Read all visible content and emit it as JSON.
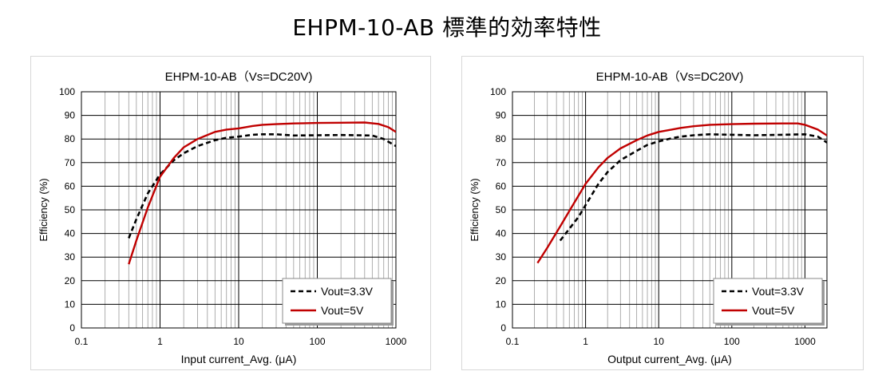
{
  "page": {
    "title": "EHPM-10-AB 標準的効率特性"
  },
  "chart_data": [
    {
      "type": "line",
      "title": "EHPM-10-AB（Vs=DC20V)",
      "xlabel": "Input current_Avg. (μA)",
      "ylabel": "Efficiency (%)",
      "x_scale": "log",
      "xlim": [
        0.1,
        1000
      ],
      "ylim": [
        0,
        100
      ],
      "x_ticks": [
        0.1,
        1,
        10,
        100,
        1000
      ],
      "x_tick_labels": [
        "0.1",
        "1",
        "10",
        "100",
        "1000"
      ],
      "y_ticks": [
        0,
        10,
        20,
        30,
        40,
        50,
        60,
        70,
        80,
        90,
        100
      ],
      "y_tick_labels": [
        "0",
        "10",
        "20",
        "30",
        "40",
        "50",
        "60",
        "70",
        "80",
        "90",
        "100"
      ],
      "grid": true,
      "legend_position": "bottom-right",
      "series": [
        {
          "name": "Vout=3.3V",
          "color": "#000000",
          "dash": "dashed",
          "x": [
            0.4,
            0.5,
            0.7,
            1,
            1.5,
            2,
            3,
            5,
            7,
            10,
            15,
            20,
            30,
            50,
            100,
            200,
            500,
            700,
            1000
          ],
          "y": [
            38,
            46,
            57,
            65,
            71,
            74,
            77,
            79.5,
            80.5,
            81,
            81.8,
            82,
            82,
            81.5,
            81.6,
            81.7,
            81.5,
            80,
            77
          ]
        },
        {
          "name": "Vout=5V",
          "color": "#c00000",
          "dash": "solid",
          "x": [
            0.4,
            0.5,
            0.7,
            1,
            1.5,
            2,
            3,
            5,
            7,
            10,
            15,
            20,
            30,
            50,
            100,
            200,
            400,
            600,
            800,
            1000
          ],
          "y": [
            27,
            37,
            51,
            64,
            72,
            76.5,
            80,
            83,
            84,
            84.5,
            85.5,
            86,
            86.3,
            86.6,
            86.8,
            86.9,
            87,
            86.4,
            85,
            83
          ]
        }
      ]
    },
    {
      "type": "line",
      "title": "EHPM-10-AB（Vs=DC20V)",
      "xlabel": "Output current_Avg. (μA)",
      "ylabel": "Efficiency (%)",
      "x_scale": "log",
      "xlim": [
        0.1,
        2000
      ],
      "ylim": [
        0,
        100
      ],
      "x_ticks": [
        0.1,
        1,
        10,
        100,
        1000
      ],
      "x_tick_labels": [
        "0.1",
        "1",
        "10",
        "100",
        "1000"
      ],
      "y_ticks": [
        0,
        10,
        20,
        30,
        40,
        50,
        60,
        70,
        80,
        90,
        100
      ],
      "y_tick_labels": [
        "0",
        "10",
        "20",
        "30",
        "40",
        "50",
        "60",
        "70",
        "80",
        "90",
        "100"
      ],
      "grid": true,
      "legend_position": "bottom-right",
      "series": [
        {
          "name": "Vout=3.3V",
          "color": "#000000",
          "dash": "dashed",
          "x": [
            0.45,
            0.6,
            0.8,
            1,
            1.5,
            2,
            3,
            5,
            7,
            10,
            15,
            20,
            30,
            50,
            100,
            200,
            500,
            1000,
            1500,
            2000
          ],
          "y": [
            37,
            42,
            47,
            52,
            61,
            66,
            71,
            75,
            77.5,
            79,
            80.3,
            81,
            81.6,
            82,
            81.8,
            81.6,
            81.8,
            82,
            81,
            78.5
          ]
        },
        {
          "name": "Vout=5V",
          "color": "#c00000",
          "dash": "solid",
          "x": [
            0.22,
            0.3,
            0.45,
            0.7,
            1,
            1.5,
            2,
            3,
            5,
            7,
            10,
            15,
            20,
            30,
            50,
            100,
            200,
            500,
            800,
            1000,
            1500,
            2000
          ],
          "y": [
            27.5,
            34,
            43,
            53,
            61,
            68,
            72,
            76,
            79.5,
            81.5,
            83,
            84,
            84.7,
            85.4,
            86,
            86.3,
            86.5,
            86.6,
            86.6,
            86,
            84,
            81.5
          ]
        }
      ]
    }
  ]
}
